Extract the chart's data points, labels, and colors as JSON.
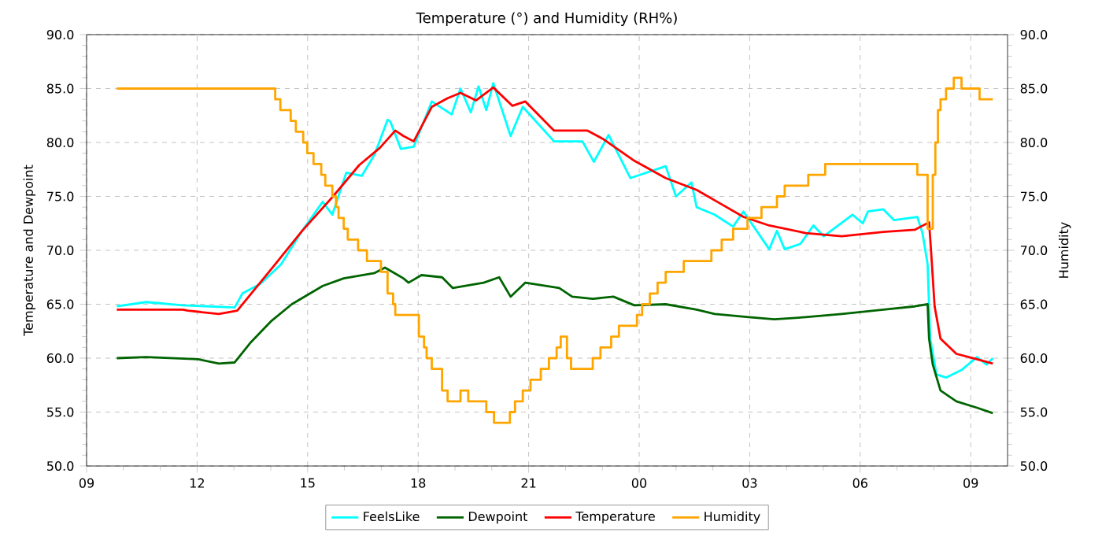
{
  "chart_data": {
    "type": "line",
    "title": "Temperature (°) and Humidity (RH%)",
    "ylabel": "Temperature and Dewpoint",
    "y2label": "Humidity",
    "xlim": [
      9,
      34
    ],
    "xticks": [
      {
        "value": 9,
        "label": "09"
      },
      {
        "value": 12,
        "label": "12"
      },
      {
        "value": 15,
        "label": "15"
      },
      {
        "value": 18,
        "label": "18"
      },
      {
        "value": 21,
        "label": "21"
      },
      {
        "value": 24,
        "label": "00"
      },
      {
        "value": 27,
        "label": "03"
      },
      {
        "value": 30,
        "label": "06"
      },
      {
        "value": 33,
        "label": "09"
      }
    ],
    "ylim": [
      50,
      90
    ],
    "yticks": [
      {
        "value": 50,
        "label": "50.0"
      },
      {
        "value": 55,
        "label": "55.0"
      },
      {
        "value": 60,
        "label": "60.0"
      },
      {
        "value": 65,
        "label": "65.0"
      },
      {
        "value": 70,
        "label": "70.0"
      },
      {
        "value": 75,
        "label": "75.0"
      },
      {
        "value": 80,
        "label": "80.0"
      },
      {
        "value": 85,
        "label": "85.0"
      },
      {
        "value": 90,
        "label": "90.0"
      }
    ],
    "y2lim": [
      50,
      90
    ],
    "y2ticks": [
      {
        "value": 50,
        "label": "50.0"
      },
      {
        "value": 55,
        "label": "55.0"
      },
      {
        "value": 60,
        "label": "60.0"
      },
      {
        "value": 65,
        "label": "65.0"
      },
      {
        "value": 70,
        "label": "70.0"
      },
      {
        "value": 75,
        "label": "75.0"
      },
      {
        "value": 80,
        "label": "80.0"
      },
      {
        "value": 85,
        "label": "85.0"
      },
      {
        "value": 90,
        "label": "90.0"
      }
    ],
    "grid": true,
    "legend": "bottom",
    "marker": "none",
    "line_style": "solid",
    "series": [
      {
        "name": "FeelsLike",
        "color": "#00ffff",
        "x": [
          9.82,
          10.62,
          11.61,
          13.02,
          13.23,
          13.72,
          14.28,
          14.85,
          15.41,
          15.67,
          16.05,
          16.47,
          16.82,
          17.17,
          17.25,
          17.53,
          17.88,
          18.37,
          18.91,
          19.15,
          19.43,
          19.64,
          19.85,
          20.04,
          20.51,
          20.84,
          21.69,
          22.46,
          22.77,
          23.17,
          23.76,
          24.72,
          25.0,
          25.42,
          25.56,
          26.05,
          26.55,
          26.83,
          27.53,
          27.74,
          27.95,
          28.38,
          28.73,
          29.01,
          29.79,
          30.07,
          30.21,
          30.63,
          30.92,
          31.55,
          31.69,
          31.83,
          31.9,
          32.07,
          32.33,
          32.75,
          33.17,
          33.43,
          33.6
        ],
        "values": [
          64.8,
          65.2,
          64.9,
          64.7,
          66.0,
          66.9,
          68.7,
          71.8,
          74.5,
          73.3,
          77.2,
          76.9,
          78.9,
          82.1,
          81.9,
          79.4,
          79.6,
          83.8,
          82.6,
          85.0,
          82.8,
          85.2,
          83.0,
          85.5,
          80.6,
          83.3,
          80.1,
          80.1,
          78.2,
          80.7,
          76.7,
          77.8,
          75.0,
          76.3,
          74.0,
          73.3,
          72.2,
          73.6,
          70.1,
          71.8,
          70.1,
          70.6,
          72.3,
          71.3,
          73.3,
          72.5,
          73.6,
          73.8,
          72.8,
          73.1,
          71.6,
          68.7,
          61.8,
          58.5,
          58.2,
          58.9,
          60.1,
          59.4,
          60.0
        ]
      },
      {
        "name": "Dewpoint",
        "color": "#006400",
        "x": [
          9.82,
          10.62,
          12.03,
          12.59,
          13.02,
          13.44,
          14.0,
          14.57,
          15.41,
          15.98,
          16.82,
          17.1,
          17.6,
          17.74,
          18.09,
          18.65,
          18.94,
          19.78,
          20.2,
          20.51,
          20.91,
          21.83,
          22.18,
          22.74,
          23.3,
          23.87,
          24.72,
          25.56,
          26.05,
          26.97,
          27.67,
          28.52,
          29.5,
          30.63,
          31.48,
          31.83,
          31.87,
          31.97,
          32.18,
          32.61,
          33.17,
          33.6
        ],
        "values": [
          60.0,
          60.1,
          59.9,
          59.5,
          59.6,
          61.4,
          63.4,
          65.0,
          66.7,
          67.4,
          67.9,
          68.4,
          67.4,
          67.0,
          67.7,
          67.5,
          66.5,
          67.0,
          67.5,
          65.7,
          67.0,
          66.5,
          65.7,
          65.5,
          65.7,
          64.9,
          65.0,
          64.5,
          64.1,
          63.8,
          63.6,
          63.8,
          64.1,
          64.5,
          64.8,
          65.0,
          61.8,
          59.4,
          57.0,
          56.0,
          55.4,
          54.9
        ]
      },
      {
        "name": "Temperature",
        "color": "#ff0000",
        "x": [
          9.82,
          11.61,
          11.75,
          12.59,
          13.09,
          14.0,
          14.85,
          15.69,
          16.4,
          16.96,
          17.38,
          17.6,
          17.88,
          18.37,
          18.8,
          19.15,
          19.57,
          20.04,
          20.56,
          20.91,
          21.69,
          22.6,
          23.03,
          23.87,
          24.72,
          25.56,
          26.12,
          26.83,
          27.53,
          28.52,
          29.5,
          30.63,
          31.48,
          31.87,
          31.93,
          32.02,
          32.18,
          32.61,
          33.17,
          33.6
        ],
        "values": [
          64.5,
          64.5,
          64.4,
          64.1,
          64.4,
          68.2,
          71.8,
          75.0,
          77.9,
          79.5,
          81.1,
          80.6,
          80.1,
          83.3,
          84.1,
          84.6,
          83.9,
          85.1,
          83.4,
          83.8,
          81.1,
          81.1,
          80.3,
          78.3,
          76.7,
          75.6,
          74.5,
          73.1,
          72.3,
          71.6,
          71.3,
          71.7,
          71.9,
          72.6,
          69.6,
          64.8,
          61.8,
          60.4,
          59.9,
          59.5
        ]
      },
      {
        "name": "Humidity",
        "color": "#ffa500",
        "type": "step",
        "axis": "y2",
        "x": [
          9.82,
          14.12,
          14.26,
          14.54,
          14.68,
          14.88,
          14.99,
          15.16,
          15.37,
          15.48,
          15.67,
          15.77,
          15.84,
          15.98,
          16.09,
          16.37,
          16.61,
          16.99,
          17.17,
          17.32,
          17.38,
          18.02,
          18.16,
          18.23,
          18.37,
          18.65,
          18.8,
          19.15,
          19.36,
          19.85,
          20.06,
          20.49,
          20.63,
          20.84,
          21.05,
          21.33,
          21.55,
          21.76,
          21.87,
          22.04,
          22.15,
          22.74,
          22.95,
          23.24,
          23.45,
          23.94,
          24.08,
          24.29,
          24.5,
          24.72,
          25.21,
          25.96,
          26.24,
          26.55,
          26.94,
          27.32,
          27.74,
          27.95,
          28.59,
          29.05,
          31.55,
          31.83,
          31.97,
          32.04,
          32.11,
          32.18,
          32.33,
          32.54,
          32.75,
          33.24,
          33.6
        ],
        "values": [
          85,
          84,
          83,
          82,
          81,
          80,
          79,
          78,
          77,
          76,
          75,
          74,
          73,
          72,
          71,
          70,
          69,
          68,
          66,
          65,
          64,
          62,
          61,
          60,
          59,
          57,
          56,
          57,
          56,
          55,
          54,
          55,
          56,
          57,
          58,
          59,
          60,
          61,
          62,
          60,
          59,
          60,
          61,
          62,
          63,
          64,
          65,
          66,
          67,
          68,
          69,
          70,
          71,
          72,
          73,
          74,
          75,
          76,
          77,
          78,
          77,
          72,
          77,
          80,
          83,
          84,
          85,
          86,
          85,
          84,
          84
        ]
      }
    ]
  }
}
